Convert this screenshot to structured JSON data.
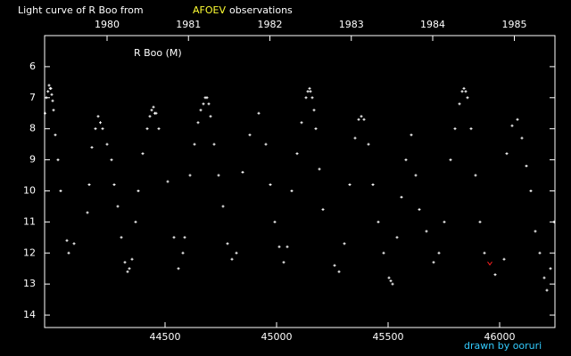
{
  "chart_data": {
    "type": "scatter",
    "title_parts": [
      {
        "text": "Light curve of R Boo from",
        "color": "#ffffff"
      },
      {
        "text": "AFOEV",
        "color": "#ffff33"
      },
      {
        "text": "observations",
        "color": "#ffffff"
      }
    ],
    "legend_label": "R Boo (M)",
    "credit": "drawn by ooruri",
    "credit_color": "#33ccff",
    "xlim": [
      43960,
      46248
    ],
    "xticks": [
      44500,
      45000,
      45500,
      46000
    ],
    "x2ticks": [
      {
        "value": 44240,
        "label": "1980"
      },
      {
        "value": 44605,
        "label": "1981"
      },
      {
        "value": 44970,
        "label": "1982"
      },
      {
        "value": 45335,
        "label": "1983"
      },
      {
        "value": 45700,
        "label": "1984"
      },
      {
        "value": 46066,
        "label": "1985"
      }
    ],
    "ylim": [
      5,
      14.4
    ],
    "y_inverted": true,
    "yticks": [
      6,
      7,
      8,
      9,
      10,
      11,
      12,
      13,
      14
    ],
    "series": [
      {
        "color": "#ffffff",
        "marker": "plus",
        "x": [
          43962,
          43968,
          43975,
          43980,
          43985,
          43988,
          43992,
          43996,
          44000,
          44008,
          44020,
          44032,
          44060,
          44068,
          44092,
          44152,
          44160,
          44172,
          44188,
          44200,
          44210,
          44220,
          44240,
          44260,
          44272,
          44288,
          44304,
          44320,
          44332,
          44340,
          44352,
          44368,
          44380,
          44400,
          44420,
          44432,
          44440,
          44448,
          44454,
          44460,
          44472,
          44512,
          44540,
          44560,
          44580,
          44588,
          44612,
          44632,
          44648,
          44660,
          44672,
          44680,
          44688,
          44696,
          44704,
          44720,
          44740,
          44760,
          44780,
          44800,
          44820,
          44848,
          44880,
          44920,
          44952,
          44972,
          44992,
          45012,
          45032,
          45048,
          45068,
          45092,
          45112,
          45132,
          45140,
          45148,
          45152,
          45160,
          45168,
          45176,
          45192,
          45208,
          45260,
          45280,
          45304,
          45328,
          45352,
          45368,
          45380,
          45392,
          45412,
          45432,
          45456,
          45480,
          45504,
          45512,
          45520,
          45540,
          45560,
          45580,
          45604,
          45624,
          45640,
          45672,
          45704,
          45728,
          45752,
          45780,
          45800,
          45820,
          45832,
          45840,
          45848,
          45856,
          45872,
          45892,
          45912,
          45932,
          45980,
          46020,
          46032,
          46056,
          46080,
          46100,
          46120,
          46140,
          46160,
          46180,
          46200,
          46212,
          46228,
          46244
        ],
        "values": [
          7.5,
          7.0,
          6.8,
          6.6,
          6.7,
          6.7,
          6.9,
          7.1,
          7.4,
          8.2,
          9.0,
          10.0,
          11.6,
          12.0,
          11.7,
          10.7,
          9.8,
          8.6,
          8.0,
          7.6,
          7.8,
          8.0,
          8.5,
          9.0,
          9.8,
          10.5,
          11.5,
          12.3,
          12.6,
          12.5,
          12.2,
          11.0,
          10.0,
          8.8,
          8.0,
          7.6,
          7.4,
          7.3,
          7.5,
          7.5,
          8.0,
          9.7,
          11.5,
          12.5,
          12.0,
          11.5,
          9.5,
          8.5,
          7.8,
          7.4,
          7.2,
          7.0,
          7.0,
          7.2,
          7.6,
          8.5,
          9.5,
          10.5,
          11.7,
          12.2,
          12.0,
          9.4,
          8.2,
          7.5,
          8.5,
          9.8,
          11.0,
          11.8,
          12.3,
          11.8,
          10.0,
          8.8,
          7.8,
          7.0,
          6.8,
          6.7,
          6.8,
          7.0,
          7.4,
          8.0,
          9.3,
          10.6,
          12.4,
          12.6,
          11.7,
          9.8,
          8.3,
          7.7,
          7.6,
          7.7,
          8.5,
          9.8,
          11.0,
          12.0,
          12.8,
          12.9,
          13.0,
          11.5,
          10.2,
          9.0,
          8.2,
          9.5,
          10.6,
          11.3,
          12.3,
          12.0,
          11.0,
          9.0,
          8.0,
          7.2,
          6.8,
          6.7,
          6.8,
          7.0,
          8.0,
          9.5,
          11.0,
          12.0,
          12.7,
          12.2,
          8.8,
          7.9,
          7.7,
          8.3,
          9.2,
          10.0,
          11.3,
          12.0,
          12.8,
          13.2,
          12.5,
          11.0
        ]
      },
      {
        "color": "#ff2020",
        "marker": "v",
        "x": [
          45956
        ],
        "values": [
          12.34
        ]
      }
    ]
  }
}
